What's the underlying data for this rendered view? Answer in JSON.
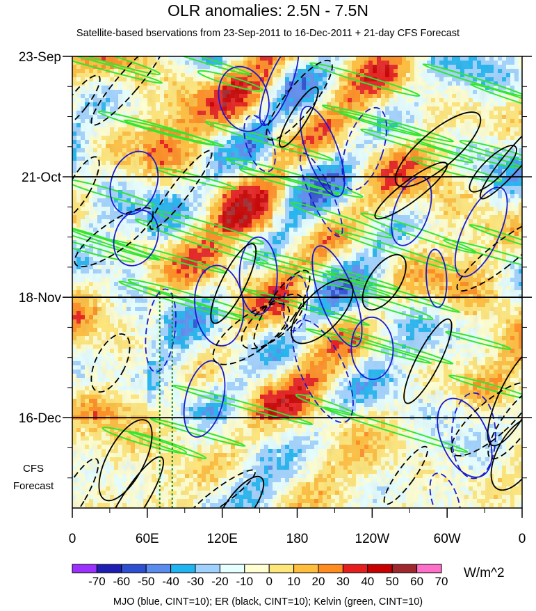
{
  "chart_data": {
    "type": "heatmap",
    "title": "OLR anomalies: 2.5N - 7.5N",
    "subtitle": "Satellite-based bservations from 23-Sep-2011 to 16-Dec-2011 + 21-day CFS Forecast",
    "x_tick_labels": [
      "0",
      "60E",
      "120E",
      "180",
      "120W",
      "60W",
      "0"
    ],
    "x_range_deg_east": [
      0,
      360
    ],
    "y_tick_labels": [
      "23-Sep",
      "21-Oct",
      "18-Nov",
      "16-Dec"
    ],
    "y_range": [
      "23-Sep-2011",
      "06-Jan-2012"
    ],
    "forecast_label_lines": [
      "CFS",
      "Forecast"
    ],
    "forecast_start": "16-Dec-2011",
    "colorbar": {
      "labels": [
        "-70",
        "-60",
        "-50",
        "-40",
        "-30",
        "-20",
        "-10",
        "0",
        "10",
        "20",
        "30",
        "40",
        "50",
        "60",
        "70"
      ],
      "colors": [
        "#9b30ff",
        "#1e1eb4",
        "#2d50d2",
        "#5a8cf0",
        "#20b4f0",
        "#a0d2ff",
        "#e6ffff",
        "#ffffd2",
        "#ffe678",
        "#ffbe3c",
        "#ff8c1e",
        "#e61e1e",
        "#c80000",
        "#a0282d",
        "#ff6ec8"
      ],
      "unit": "W/m^2"
    },
    "footnote": "MJO (blue, CINT=10); ER (black, CINT=10); Kelvin (green, CINT=10)",
    "contour_colors": {
      "mjo": "#1a1ad2",
      "er": "#000000",
      "kelvin": "#32e632"
    }
  }
}
